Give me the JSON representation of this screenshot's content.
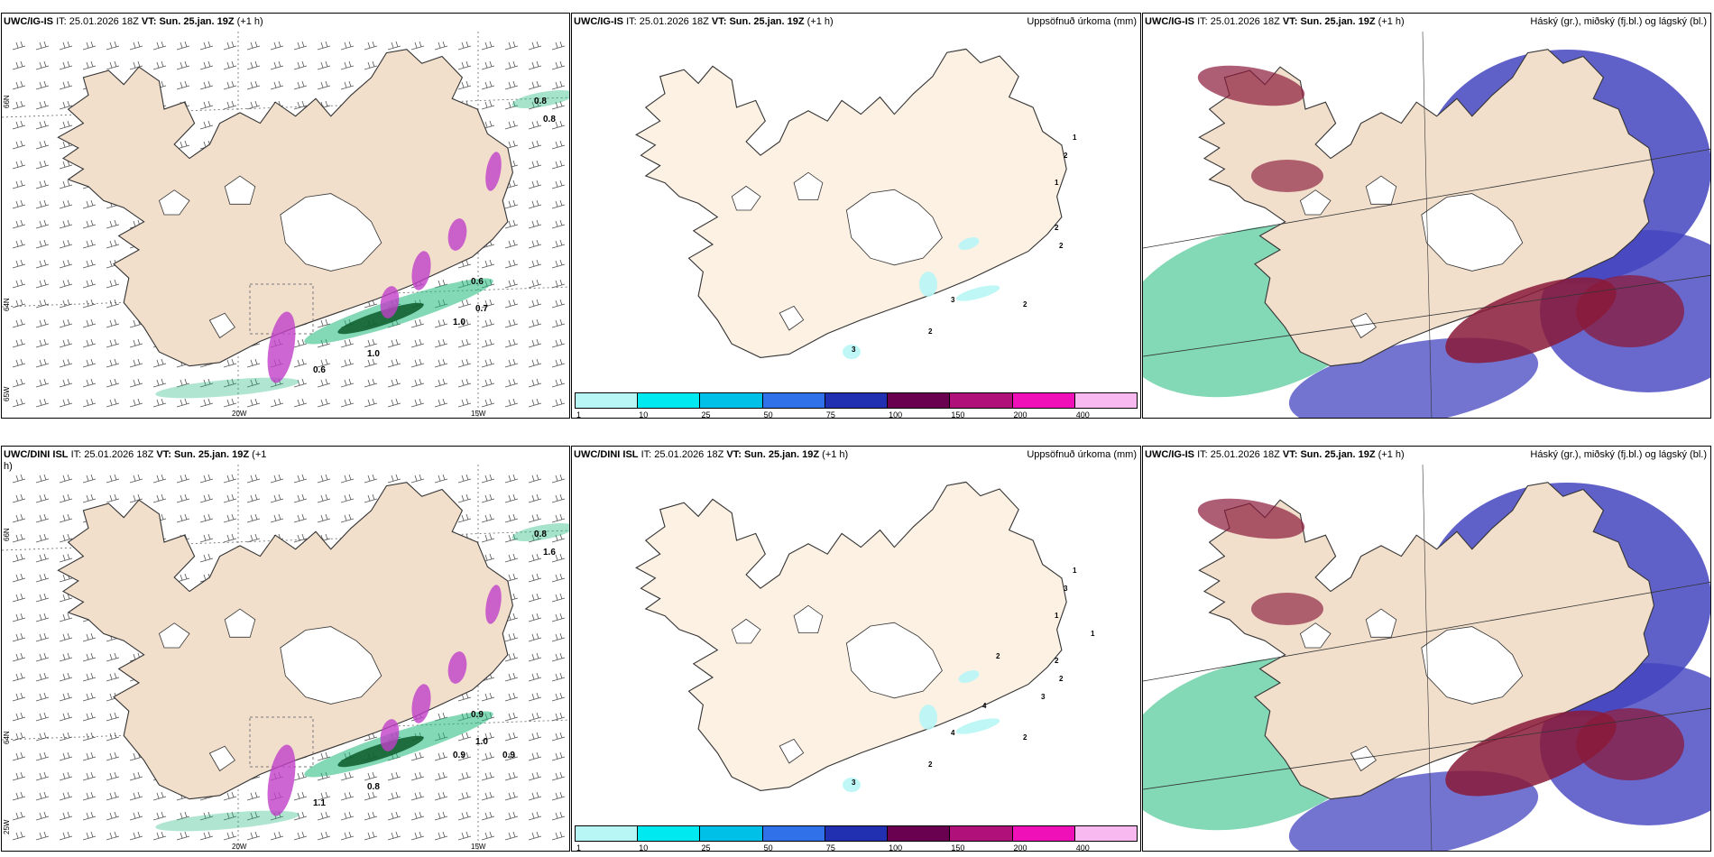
{
  "panels": {
    "p1": {
      "model": "UWC/IG-IS",
      "it_label": "IT:",
      "it": "25.01.2026 18Z",
      "vt_label": "VT:",
      "vt": "Sun. 25.jan. 19Z",
      "lead": "(+1 h)",
      "right_title": "",
      "lat_labels": [
        "66N",
        "64N",
        "65W"
      ],
      "lon_labels": [
        "20W",
        "15W"
      ],
      "values": [
        "0.6",
        "1.0",
        "0.7",
        "0.8",
        "1.0",
        "0.6",
        "0.8"
      ]
    },
    "p2": {
      "model": "UWC/IG-IS",
      "it_label": "IT:",
      "it": "25.01.2026 18Z",
      "vt_label": "VT:",
      "vt": "Sun. 25.jan. 19Z",
      "lead": "(+1 h)",
      "right_title": "Uppsöfnuð úrkoma (mm)",
      "values": [
        "1",
        "2",
        "1",
        "2",
        "2",
        "3",
        "2",
        "2",
        "3"
      ]
    },
    "p3": {
      "model": "UWC/IG-IS",
      "it_label": "IT:",
      "it": "25.01.2026 18Z",
      "vt_label": "VT:",
      "vt": "Sun. 25.jan. 19Z",
      "lead": "(+1 h)",
      "right_title": "Háský (gr.), miðský (fj.bl.) og lágský (bl.)"
    },
    "p4": {
      "model": "UWC/DINI ISL",
      "it_label": "IT:",
      "it": "25.01.2026 18Z",
      "vt_label": "VT:",
      "vt": "Sun. 25.jan. 19Z",
      "lead": "(+1 h)",
      "right_title": "",
      "lat_labels": [
        "66N",
        "64N",
        "25W"
      ],
      "lon_labels": [
        "20W",
        "15W"
      ],
      "values": [
        "1.1",
        "0.8",
        "1.0",
        "1.6",
        "0.9",
        "0.9",
        "0.8",
        "0.9"
      ]
    },
    "p5": {
      "model": "UWC/DINI ISL",
      "it_label": "IT:",
      "it": "25.01.2026 18Z",
      "vt_label": "VT:",
      "vt": "Sun. 25.jan. 19Z",
      "lead": "(+1 h)",
      "right_title": "Uppsöfnuð úrkoma (mm)",
      "values": [
        "1",
        "3",
        "1",
        "2",
        "2",
        "4",
        "2",
        "2",
        "3",
        "4",
        "2",
        "3",
        "1"
      ]
    },
    "p6": {
      "model": "UWC/IG-IS",
      "it_label": "IT:",
      "it": "25.01.2026 18Z",
      "vt_label": "VT:",
      "vt": "Sun. 25.jan. 19Z",
      "lead": "(+1 h)",
      "right_title": "Háský (gr.), miðský (fj.bl.) og lágský (bl.)"
    }
  },
  "colorbar": {
    "labels": [
      "1",
      "10",
      "25",
      "50",
      "75",
      "100",
      "150",
      "200",
      "400"
    ],
    "colors": [
      "#b8f5f5",
      "#00e8f0",
      "#00c0e8",
      "#3070e8",
      "#2030b0",
      "#6a0050",
      "#b0107a",
      "#f010b8",
      "#f8b8f0"
    ]
  },
  "colors": {
    "land": "#f1dfcc",
    "land_precip": "#fdf1e4",
    "coast": "#333333",
    "green": "#1db87a",
    "dark_green": "#0c5a2a",
    "purple": "#c040c8",
    "blue_cloud": "#4444c0",
    "red_cloud": "#8a1a3a"
  }
}
